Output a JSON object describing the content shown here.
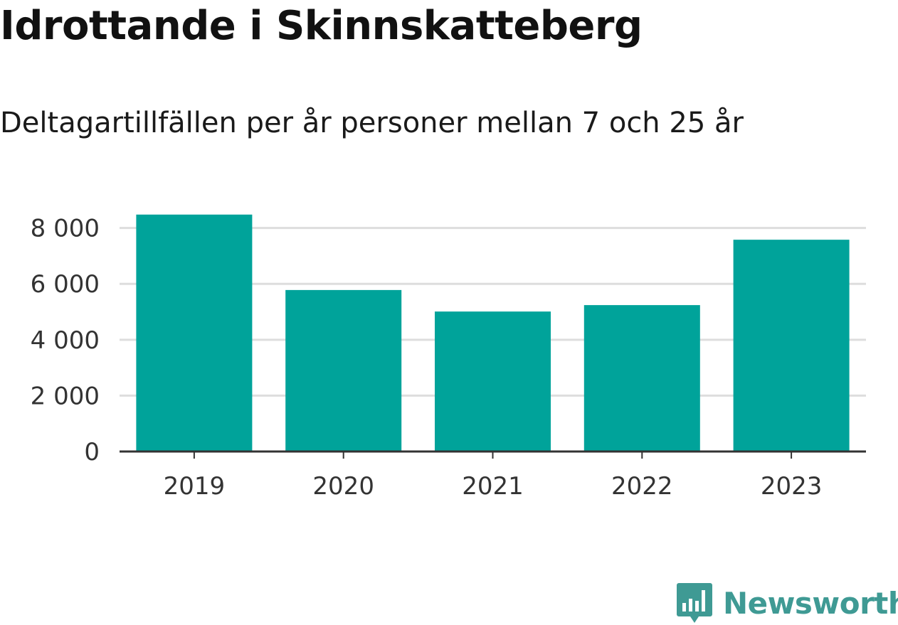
{
  "header": {
    "title": "Idrottande i Skinnskatteberg",
    "subtitle": "Deltagartillfällen per år personer mellan 7 och 25 år"
  },
  "brand": {
    "name": "Newsworthy",
    "color": "#3f9a94"
  },
  "chart_data": {
    "type": "bar",
    "categories": [
      "2019",
      "2020",
      "2021",
      "2022",
      "2023"
    ],
    "values": [
      8480,
      5780,
      5010,
      5240,
      7580
    ],
    "ylim": [
      0,
      8500
    ],
    "yticks": [
      0,
      2000,
      4000,
      6000,
      8000
    ],
    "ytick_labels": [
      "0",
      "2 000",
      "4 000",
      "6 000",
      "8 000"
    ],
    "grid": true,
    "bar_color": "#00a39a",
    "grid_color": "#dddddd",
    "axis_color": "#333333"
  }
}
